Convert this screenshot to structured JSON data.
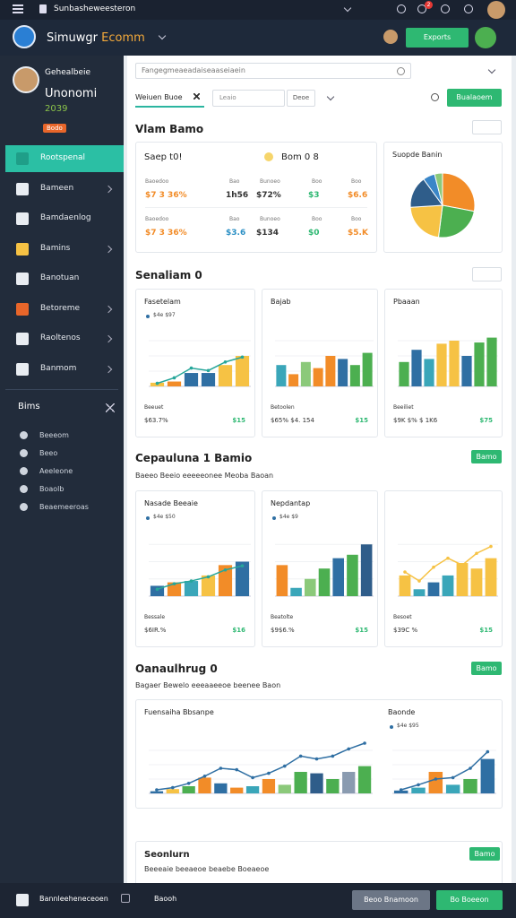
{
  "status_bar": {
    "title": "Sunbasheweesteron",
    "badge": "2"
  },
  "header": {
    "title_main": "Simuwgr",
    "title_accent": "Ecomm",
    "button": "Exports"
  },
  "sidebar": {
    "profile": {
      "name": "Gehealbeie",
      "role": "Unonomi",
      "year": "2039",
      "badge": "Bodo"
    },
    "nav": [
      "Rootspenal",
      "Bameen",
      "Bamdaenlog",
      "Bamins",
      "Banotuan",
      "Betoreme",
      "Raoltenos",
      "Banmom"
    ],
    "section": "Bims",
    "sub": [
      "Beeeom",
      "Beeo",
      "Aeeleone",
      "Boaolb",
      "Beaemeeroas"
    ]
  },
  "search": {
    "placeholder": "Fangegmeaeadaiseaaseiaein"
  },
  "tabs": {
    "active": "Weiuen Buoe",
    "input": "Leaio",
    "button": "Deoe",
    "action": "Bualaoem"
  },
  "sections": [
    {
      "title": "Vlam Bamo"
    },
    {
      "title": "Senaliam 0"
    },
    {
      "title": "Cepauluna 1 Bamio",
      "button": "Bamo",
      "subtitle": "Baeeo Beeio eeeeeonee Meoba Baoan"
    },
    {
      "title": "Oanaulhrug 0",
      "button": "Bamo",
      "subtitle": "Bagaer Bewelo eeeaaeeoe beenee Baon"
    },
    {
      "title": "Seonlurn",
      "button": "Bamo",
      "subtitle": "Beeeaie beeaeoe beaebe Boeaeoe"
    }
  ],
  "stats": {
    "title": "Saep t0!",
    "badge": "Bom 0 8",
    "rows": [
      [
        {
          "label": "Baoedoo",
          "value": "$7 3 36%",
          "color": "#f28c28"
        },
        {
          "label": "Bao",
          "value": "1h56",
          "color": "#333333"
        },
        {
          "label": "Bunoeo",
          "value": "$72%",
          "color": "#333333"
        },
        {
          "label": "Boo",
          "value": "$3",
          "color": "#2eb872"
        },
        {
          "label": "Boo",
          "value": "$6.6",
          "color": "#f28c28"
        }
      ],
      [
        {
          "label": "Baoedoo",
          "value": "$7 3 36%",
          "color": "#f28c28"
        },
        {
          "label": "Bao",
          "value": "$3.6",
          "color": "#2a8fc4"
        },
        {
          "label": "Bunoeo",
          "value": "$134",
          "color": "#333333"
        },
        {
          "label": "Boo",
          "value": "$0",
          "color": "#2eb872"
        },
        {
          "label": "Boo",
          "value": "$5.K",
          "color": "#f28c28"
        }
      ]
    ]
  },
  "bottom_bar": {
    "title": "Bannleeheneceoen",
    "link": "Baooh",
    "secondary": "Beoo Bnamoon",
    "primary": "Bo Boeeon"
  },
  "chart_data": [
    {
      "type": "pie",
      "title": "Suopde Banin",
      "values": [
        28,
        24,
        22,
        16,
        6,
        4
      ],
      "colors": [
        "#f28c28",
        "#4caf50",
        "#f6c244",
        "#2f5d8a",
        "#3a86c8",
        "#8bc97a"
      ]
    },
    {
      "type": "bar",
      "title": "Fasetelam",
      "note": "$4e $97",
      "ylim": [
        0,
        100
      ],
      "values": [
        6,
        8,
        22,
        22,
        35,
        50
      ],
      "colors": [
        "#f6c244",
        "#f28c28",
        "#2f6fa3",
        "#2f6fa3",
        "#f6c244",
        "#f6c244"
      ],
      "line_values": [
        5,
        14,
        30,
        26,
        40,
        48
      ],
      "line_color": "#26a69a",
      "footer": [
        "Beeuet",
        "$63.7%",
        "$15"
      ]
    },
    {
      "type": "bar",
      "title": "Bajab",
      "ylim": [
        0,
        100
      ],
      "values": [
        35,
        20,
        40,
        30,
        50,
        45,
        35,
        55
      ],
      "colors": [
        "#3aa6b9",
        "#f28c28",
        "#8bc97a",
        "#f28c28",
        "#f28c28",
        "#2f6fa3",
        "#4caf50",
        "#4caf50"
      ],
      "footer": [
        "Betoolen",
        "$65% $4. 154",
        "$15"
      ]
    },
    {
      "type": "bar",
      "title": "Pbaaan",
      "ylim": [
        0,
        100
      ],
      "values": [
        40,
        60,
        45,
        70,
        75,
        50,
        72,
        80
      ],
      "colors": [
        "#4caf50",
        "#2f6fa3",
        "#3aa6b9",
        "#f6c244",
        "#f6c244",
        "#2f6fa3",
        "#4caf50",
        "#4caf50"
      ],
      "footer": [
        "Beeiliet",
        "$9K $% $ 1K6",
        "$75"
      ]
    },
    {
      "type": "bar",
      "title": "Nasade Beeaie",
      "note": "$4e $50",
      "ylim": [
        0,
        100
      ],
      "values": [
        15,
        20,
        22,
        30,
        45,
        50
      ],
      "colors": [
        "#2f6fa3",
        "#f28c28",
        "#3aa6b9",
        "#f6c244",
        "#f28c28",
        "#2f6fa3"
      ],
      "line_values": [
        10,
        18,
        22,
        28,
        38,
        44
      ],
      "line_color": "#26a69a",
      "footer": [
        "Bessale",
        "$6IR.%",
        "$16"
      ]
    },
    {
      "type": "bar",
      "title": "Nepdantap",
      "note": "$4e $9",
      "ylim": [
        0,
        100
      ],
      "values": [
        45,
        12,
        25,
        40,
        55,
        60,
        75
      ],
      "colors": [
        "#f28c28",
        "#3aa6b9",
        "#8bc97a",
        "#4caf50",
        "#2f6fa3",
        "#4caf50",
        "#2f5d8a"
      ],
      "footer": [
        "Beatolte",
        "$9$6.%",
        "$15"
      ]
    },
    {
      "type": "bar",
      "ylim": [
        0,
        100
      ],
      "values": [
        30,
        10,
        20,
        30,
        48,
        40,
        55
      ],
      "colors": [
        "#f6c244",
        "#3aa6b9",
        "#2f6fa3",
        "#3aa6b9",
        "#f6c244",
        "#f6c244",
        "#f6c244"
      ],
      "line_values": [
        35,
        22,
        42,
        55,
        45,
        62,
        72
      ],
      "line_color": "#f6c244",
      "footer": [
        "Besoet",
        "$39C %",
        "$15"
      ]
    },
    {
      "type": "bar",
      "title": "Fuensaiha Bbsanpe",
      "ylim": [
        0,
        80
      ],
      "values": [
        3,
        6,
        10,
        22,
        14,
        8,
        10,
        20,
        12,
        30,
        28,
        20,
        30,
        38
      ],
      "colors": [
        "#2f6fa3",
        "#f6c244",
        "#4caf50",
        "#f28c28",
        "#2f6fa3",
        "#f28c28",
        "#3aa6b9",
        "#f28c28",
        "#8bc97a",
        "#4caf50",
        "#2f5d8a",
        "#4caf50",
        "#8a9bb0",
        "#4caf50"
      ],
      "line_values": [
        5,
        8,
        14,
        24,
        35,
        33,
        22,
        28,
        38,
        52,
        48,
        52,
        62,
        70
      ],
      "line_color": "#2f6fa3"
    },
    {
      "type": "bar",
      "title": "Baonde",
      "note": "$4e $95",
      "ylim": [
        0,
        80
      ],
      "values": [
        4,
        8,
        30,
        12,
        20,
        48
      ],
      "colors": [
        "#2f6fa3",
        "#3aa6b9",
        "#f28c28",
        "#3aa6b9",
        "#4caf50",
        "#2f6fa3"
      ],
      "line_values": [
        5,
        12,
        20,
        22,
        35,
        58
      ],
      "line_color": "#2f6fa3"
    }
  ]
}
